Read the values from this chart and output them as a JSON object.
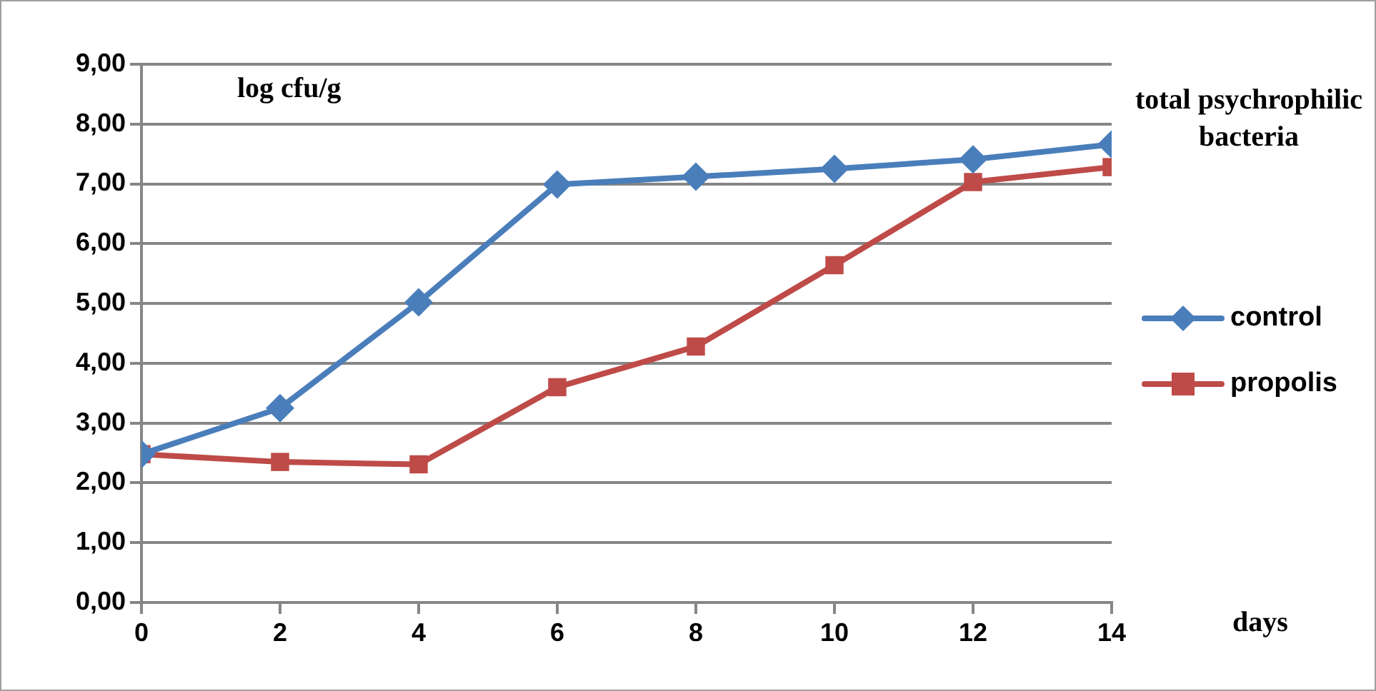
{
  "chart_data": {
    "type": "line",
    "title": "total psychrophilic bacteria",
    "xlabel": "days",
    "ylabel": "log cfu/g",
    "x": [
      0,
      2,
      4,
      6,
      8,
      10,
      12,
      14
    ],
    "series": [
      {
        "name": "control",
        "color": "#4a7ebb",
        "marker": "diamond",
        "values": [
          2.48,
          3.25,
          5.02,
          6.99,
          7.12,
          7.25,
          7.41,
          7.66
        ]
      },
      {
        "name": "propolis",
        "color": "#be4b48",
        "marker": "square",
        "values": [
          2.48,
          2.35,
          2.31,
          3.6,
          4.28,
          5.64,
          7.03,
          7.28
        ]
      }
    ],
    "xlim": [
      0,
      14
    ],
    "xticks": [
      0,
      2,
      4,
      6,
      8,
      10,
      12,
      14
    ],
    "ylim": [
      0,
      9
    ],
    "yticks": [
      {
        "value": 0,
        "label": "0,00"
      },
      {
        "value": 1,
        "label": "1,00"
      },
      {
        "value": 2,
        "label": "2,00"
      },
      {
        "value": 3,
        "label": "3,00"
      },
      {
        "value": 4,
        "label": "4,00"
      },
      {
        "value": 5,
        "label": "5,00"
      },
      {
        "value": 6,
        "label": "6,00"
      },
      {
        "value": 7,
        "label": "7,00"
      },
      {
        "value": 8,
        "label": "8,00"
      },
      {
        "value": 9,
        "label": "9,00"
      }
    ],
    "grid": "y",
    "legend": "right",
    "line_style": "solid"
  }
}
